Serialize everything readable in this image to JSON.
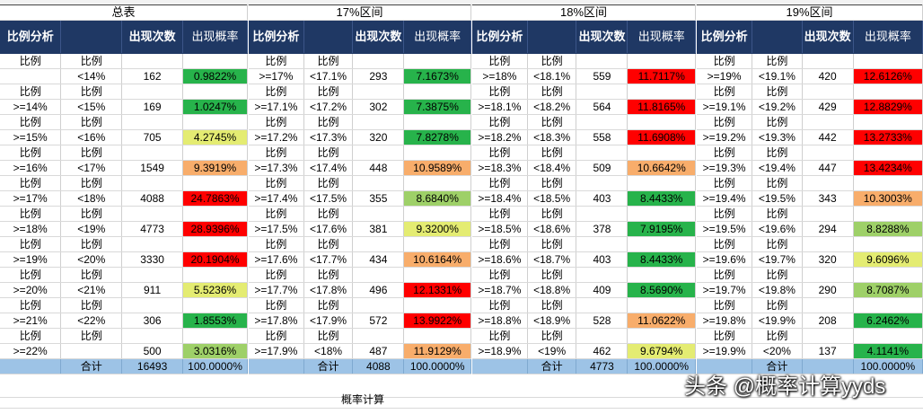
{
  "header": {
    "col1": "比例分析",
    "count": "出现次数",
    "prob": "出现概率"
  },
  "sub_label": "比例",
  "total_label": "合计",
  "sheet_name": "概率计算",
  "watermark": "头条 @概率计算yyds",
  "colors": {
    "red": "#ff0000",
    "orange": "#f8ad6b",
    "yellow": "#e4ec72",
    "lightgreen": "#9ed068",
    "green": "#27b34b",
    "header": "#1f3864",
    "total": "#9dc3e6"
  },
  "panels": [
    {
      "title": "总表",
      "rows": [
        {
          "lo": "",
          "hi": "<14%",
          "count": "162",
          "prob": "0.9822%",
          "color": "green"
        },
        {
          "lo": ">=14%",
          "hi": "<15%",
          "count": "169",
          "prob": "1.0247%",
          "color": "green"
        },
        {
          "lo": ">=15%",
          "hi": "<16%",
          "count": "705",
          "prob": "4.2745%",
          "color": "yellow"
        },
        {
          "lo": ">=16%",
          "hi": "<17%",
          "count": "1549",
          "prob": "9.3919%",
          "color": "orange"
        },
        {
          "lo": ">=17%",
          "hi": "<18%",
          "count": "4088",
          "prob": "24.7863%",
          "color": "red"
        },
        {
          "lo": ">=18%",
          "hi": "<19%",
          "count": "4773",
          "prob": "28.9396%",
          "color": "red"
        },
        {
          "lo": ">=19%",
          "hi": "<20%",
          "count": "3330",
          "prob": "20.1904%",
          "color": "red"
        },
        {
          "lo": ">=20%",
          "hi": "<21%",
          "count": "911",
          "prob": "5.5236%",
          "color": "yellow"
        },
        {
          "lo": ">=21%",
          "hi": "<22%",
          "count": "306",
          "prob": "1.8553%",
          "color": "green"
        },
        {
          "lo": ">=22%",
          "hi": "",
          "count": "500",
          "prob": "3.0316%",
          "color": "lightgreen"
        }
      ],
      "total": {
        "count": "16493",
        "prob": "100.0000%"
      }
    },
    {
      "title": "17%区间",
      "rows": [
        {
          "lo": ">=17%",
          "hi": "<17.1%",
          "count": "293",
          "prob": "7.1673%",
          "color": "green"
        },
        {
          "lo": ">=17.1%",
          "hi": "<17.2%",
          "count": "302",
          "prob": "7.3875%",
          "color": "green"
        },
        {
          "lo": ">=17.2%",
          "hi": "<17.3%",
          "count": "320",
          "prob": "7.8278%",
          "color": "green"
        },
        {
          "lo": ">=17.3%",
          "hi": "<17.4%",
          "count": "448",
          "prob": "10.9589%",
          "color": "orange"
        },
        {
          "lo": ">=17.4%",
          "hi": "<17.5%",
          "count": "355",
          "prob": "8.6840%",
          "color": "lightgreen"
        },
        {
          "lo": ">=17.5%",
          "hi": "<17.6%",
          "count": "381",
          "prob": "9.3200%",
          "color": "yellow"
        },
        {
          "lo": ">=17.6%",
          "hi": "<17.7%",
          "count": "434",
          "prob": "10.6164%",
          "color": "orange"
        },
        {
          "lo": ">=17.7%",
          "hi": "<17.8%",
          "count": "496",
          "prob": "12.1331%",
          "color": "red"
        },
        {
          "lo": ">=17.8%",
          "hi": "<17.9%",
          "count": "572",
          "prob": "13.9922%",
          "color": "red"
        },
        {
          "lo": ">=17.9%",
          "hi": "<18%",
          "count": "487",
          "prob": "11.9129%",
          "color": "orange"
        }
      ],
      "total": {
        "count": "4088",
        "prob": "100.0000%"
      }
    },
    {
      "title": "18%区间",
      "rows": [
        {
          "lo": ">=18%",
          "hi": "<18.1%",
          "count": "559",
          "prob": "11.7117%",
          "color": "red"
        },
        {
          "lo": ">=18.1%",
          "hi": "<18.2%",
          "count": "564",
          "prob": "11.8165%",
          "color": "red"
        },
        {
          "lo": ">=18.2%",
          "hi": "<18.3%",
          "count": "558",
          "prob": "11.6908%",
          "color": "red"
        },
        {
          "lo": ">=18.3%",
          "hi": "<18.4%",
          "count": "509",
          "prob": "10.6642%",
          "color": "orange"
        },
        {
          "lo": ">=18.4%",
          "hi": "<18.5%",
          "count": "403",
          "prob": "8.4433%",
          "color": "green"
        },
        {
          "lo": ">=18.5%",
          "hi": "<18.6%",
          "count": "378",
          "prob": "7.9195%",
          "color": "green"
        },
        {
          "lo": ">=18.6%",
          "hi": "<18.7%",
          "count": "403",
          "prob": "8.4433%",
          "color": "green"
        },
        {
          "lo": ">=18.7%",
          "hi": "<18.8%",
          "count": "409",
          "prob": "8.5690%",
          "color": "green"
        },
        {
          "lo": ">=18.8%",
          "hi": "<18.9%",
          "count": "528",
          "prob": "11.0622%",
          "color": "orange"
        },
        {
          "lo": ">=18.9%",
          "hi": "<19%",
          "count": "462",
          "prob": "9.6794%",
          "color": "yellow"
        }
      ],
      "total": {
        "count": "4773",
        "prob": "100.0000%"
      }
    },
    {
      "title": "19%区间",
      "rows": [
        {
          "lo": ">=19%",
          "hi": "<19.1%",
          "count": "420",
          "prob": "12.6126%",
          "color": "red"
        },
        {
          "lo": ">=19.1%",
          "hi": "<19.2%",
          "count": "429",
          "prob": "12.8829%",
          "color": "red"
        },
        {
          "lo": ">=19.2%",
          "hi": "<19.3%",
          "count": "442",
          "prob": "13.2733%",
          "color": "red"
        },
        {
          "lo": ">=19.3%",
          "hi": "<19.4%",
          "count": "447",
          "prob": "13.4234%",
          "color": "red"
        },
        {
          "lo": ">=19.4%",
          "hi": "<19.5%",
          "count": "343",
          "prob": "10.3003%",
          "color": "orange"
        },
        {
          "lo": ">=19.5%",
          "hi": "<19.6%",
          "count": "294",
          "prob": "8.8288%",
          "color": "lightgreen"
        },
        {
          "lo": ">=19.6%",
          "hi": "<19.7%",
          "count": "320",
          "prob": "9.6096%",
          "color": "yellow"
        },
        {
          "lo": ">=19.7%",
          "hi": "<19.8%",
          "count": "290",
          "prob": "8.7087%",
          "color": "lightgreen"
        },
        {
          "lo": ">=19.8%",
          "hi": "<19.9%",
          "count": "208",
          "prob": "6.2462%",
          "color": "green"
        },
        {
          "lo": ">=19.9%",
          "hi": "<20%",
          "count": "137",
          "prob": "4.1141%",
          "color": "green"
        }
      ],
      "total": {
        "count": "",
        "prob": "100.0000%"
      }
    }
  ]
}
